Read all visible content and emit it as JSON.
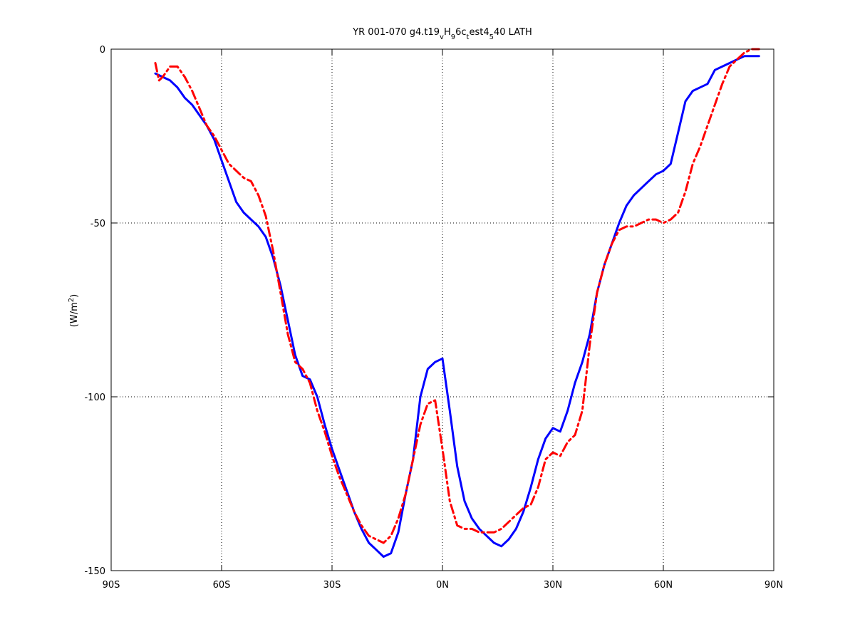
{
  "chart_data": {
    "type": "line",
    "title": "YR 001-070 g4.t19",
    "title_parts": [
      {
        "text": "YR 001-070 g4.t19",
        "shift": "base"
      },
      {
        "text": "v",
        "shift": "sub"
      },
      {
        "text": "H",
        "shift": "base"
      },
      {
        "text": "9",
        "shift": "sub"
      },
      {
        "text": "6c",
        "shift": "base"
      },
      {
        "text": "t",
        "shift": "sub"
      },
      {
        "text": "est4",
        "shift": "base"
      },
      {
        "text": "5",
        "shift": "sub"
      },
      {
        "text": "40 LATH",
        "shift": "base"
      }
    ],
    "xlabel": "",
    "ylabel": "(W/m",
    "ylabel_sup": "2",
    "ylabel_close": ")",
    "xlim": [
      -90,
      90
    ],
    "ylim": [
      -150,
      0
    ],
    "xticks": [
      -90,
      -60,
      -30,
      0,
      30,
      60,
      90
    ],
    "xtick_labels": [
      "90S",
      "60S",
      "30S",
      "0N",
      "30N",
      "60N",
      "90N"
    ],
    "yticks": [
      -150,
      -100,
      -50,
      0
    ],
    "ytick_labels": [
      "-150",
      "-100",
      "-50",
      "0"
    ],
    "grid": true,
    "legend": "none",
    "series": [
      {
        "color": "#0000ff",
        "style": "solid",
        "x": [
          -78,
          -76,
          -74,
          -72,
          -70,
          -68,
          -66,
          -64,
          -62,
          -60,
          -58,
          -56,
          -54,
          -52,
          -50,
          -48,
          -46,
          -44,
          -42,
          -40,
          -38,
          -36,
          -34,
          -32,
          -30,
          -28,
          -26,
          -24,
          -22,
          -20,
          -18,
          -16,
          -14,
          -12,
          -10,
          -8,
          -6,
          -4,
          -2,
          0,
          2,
          4,
          6,
          8,
          10,
          12,
          14,
          16,
          18,
          20,
          22,
          24,
          26,
          28,
          30,
          32,
          34,
          36,
          38,
          40,
          42,
          44,
          46,
          48,
          50,
          52,
          54,
          56,
          58,
          60,
          62,
          64,
          66,
          68,
          70,
          72,
          74,
          76,
          78,
          80,
          82,
          84,
          86
        ],
        "y": [
          -7,
          -8,
          -9,
          -11,
          -14,
          -16,
          -19,
          -22,
          -26,
          -32,
          -38,
          -44,
          -47,
          -49,
          -51,
          -54,
          -60,
          -68,
          -78,
          -88,
          -94,
          -95,
          -100,
          -108,
          -115,
          -121,
          -127,
          -133,
          -138,
          -142,
          -144,
          -146,
          -145,
          -139,
          -128,
          -118,
          -100,
          -92,
          -90,
          -89,
          -104,
          -120,
          -130,
          -135,
          -138,
          -140,
          -142,
          -143,
          -141,
          -138,
          -133,
          -126,
          -118,
          -112,
          -109,
          -110,
          -104,
          -96,
          -90,
          -82,
          -70,
          -62,
          -56,
          -50,
          -45,
          -42,
          -40,
          -38,
          -36,
          -35,
          -33,
          -24,
          -15,
          -12,
          -11,
          -10,
          -6,
          -5,
          -4,
          -3,
          -2,
          -2,
          -2
        ]
      },
      {
        "color": "#ff0000",
        "style": "dashdot",
        "x": [
          -78,
          -77,
          -76,
          -74,
          -72,
          -70,
          -68,
          -66,
          -64,
          -62,
          -60,
          -58,
          -56,
          -54,
          -52,
          -50,
          -48,
          -46,
          -44,
          -42,
          -40,
          -38,
          -36,
          -34,
          -32,
          -30,
          -28,
          -26,
          -24,
          -22,
          -20,
          -18,
          -16,
          -14,
          -12,
          -10,
          -8,
          -6,
          -4,
          -2,
          0,
          2,
          4,
          6,
          8,
          10,
          12,
          14,
          16,
          18,
          20,
          22,
          24,
          26,
          28,
          30,
          32,
          34,
          36,
          38,
          40,
          42,
          44,
          46,
          48,
          50,
          52,
          54,
          56,
          58,
          60,
          62,
          64,
          66,
          68,
          70,
          72,
          74,
          76,
          78,
          80,
          82,
          84,
          86
        ],
        "y": [
          -4,
          -9,
          -8,
          -5,
          -5,
          -8,
          -12,
          -17,
          -22,
          -25,
          -29,
          -33,
          -35,
          -37,
          -38,
          -42,
          -48,
          -58,
          -70,
          -82,
          -90,
          -92,
          -96,
          -104,
          -110,
          -117,
          -123,
          -128,
          -133,
          -137,
          -140,
          -141,
          -142,
          -140,
          -135,
          -128,
          -118,
          -108,
          -102,
          -101,
          -115,
          -130,
          -137,
          -138,
          -138,
          -139,
          -139,
          -139,
          -138,
          -136,
          -134,
          -132,
          -131,
          -126,
          -118,
          -116,
          -117,
          -113,
          -111,
          -104,
          -85,
          -70,
          -62,
          -56,
          -52,
          -51,
          -51,
          -50,
          -49,
          -49,
          -50,
          -49,
          -47,
          -41,
          -33,
          -28,
          -22,
          -16,
          -10,
          -5,
          -3,
          -1,
          0,
          0
        ]
      }
    ]
  }
}
